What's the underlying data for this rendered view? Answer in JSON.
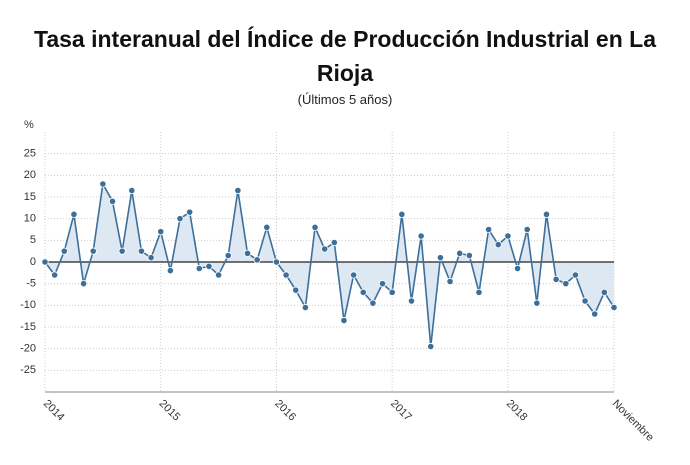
{
  "chart_data": {
    "type": "line",
    "title": "Tasa interanual del Índice de Producción Industrial en La Rioja",
    "subtitle": "(Últimos 5 años)",
    "y_label": "%",
    "categories": [
      "2014",
      null,
      null,
      null,
      null,
      null,
      null,
      null,
      null,
      null,
      null,
      null,
      "2015",
      null,
      null,
      null,
      null,
      null,
      null,
      null,
      null,
      null,
      null,
      null,
      "2016",
      null,
      null,
      null,
      null,
      null,
      null,
      null,
      null,
      null,
      null,
      null,
      "2017",
      null,
      null,
      null,
      null,
      null,
      null,
      null,
      null,
      null,
      null,
      null,
      "2018",
      null,
      null,
      null,
      null,
      null,
      null,
      null,
      null,
      null,
      null,
      "Noviembre"
    ],
    "series": [
      {
        "name": "Tasa interanual",
        "color": "#3d6f9a",
        "values": [
          0,
          -3,
          2.5,
          11,
          -5,
          2.5,
          18,
          14,
          2.5,
          16.5,
          2.5,
          1,
          7,
          -2,
          10,
          11.5,
          -1.5,
          -1,
          -3,
          1.5,
          16.5,
          2,
          0.5,
          8,
          0,
          -3,
          -6.5,
          -10.5,
          8,
          3,
          4.5,
          -13.5,
          -3,
          -7,
          -9.5,
          -5,
          -7,
          11,
          -9,
          6,
          -19.5,
          1,
          -4.5,
          2,
          1.5,
          -7,
          7.5,
          4,
          6,
          -1.5,
          7.5,
          -9.5,
          11,
          -4,
          -5,
          -3,
          -9,
          -12,
          -7,
          -10.5
        ]
      }
    ],
    "ylim": [
      -30,
      30
    ],
    "yticks": [
      -25,
      -20,
      -15,
      -10,
      -5,
      0,
      5,
      10,
      15,
      20,
      25
    ],
    "grid": true,
    "area_color": "#dde8f2"
  }
}
